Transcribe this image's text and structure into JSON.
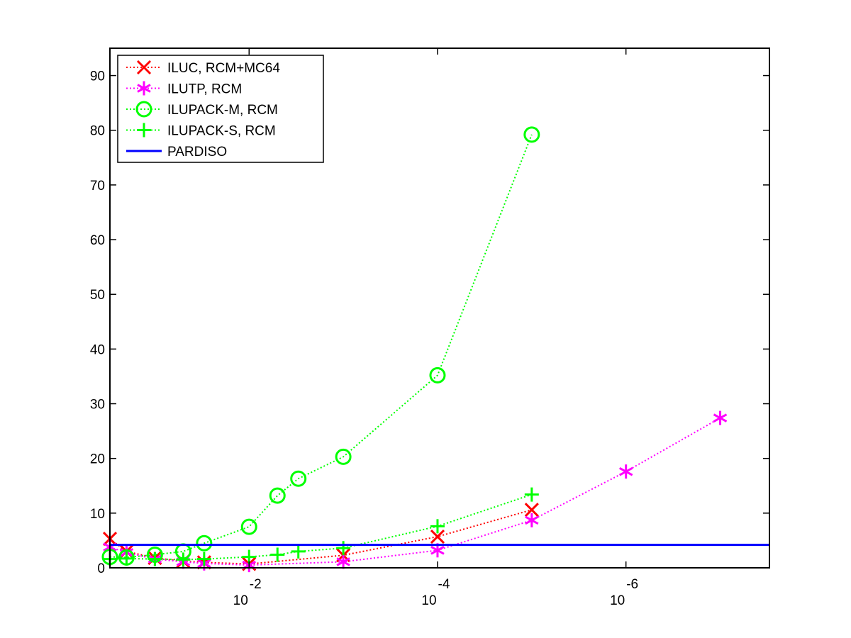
{
  "chart_data": {
    "type": "line",
    "x_scale": "log",
    "xlim": [
      0.3,
      3e-08
    ],
    "ylim": [
      0,
      95
    ],
    "x_ticks": [
      {
        "value": 0.01,
        "base": "10",
        "exponent": "-2"
      },
      {
        "value": 0.0001,
        "base": "10",
        "exponent": "-4"
      },
      {
        "value": 1e-06,
        "base": "10",
        "exponent": "-6"
      }
    ],
    "y_ticks": [
      0,
      10,
      20,
      30,
      40,
      50,
      60,
      70,
      80,
      90
    ],
    "grid": false,
    "legend_position": "top-left",
    "series": [
      {
        "name": "ILUC, RCM+MC64",
        "color": "#ff0000",
        "marker": "x",
        "line": "dotted",
        "points": [
          [
            0.3,
            5.3
          ],
          [
            0.2,
            3.0
          ],
          [
            0.1,
            1.8
          ],
          [
            0.05,
            1.2
          ],
          [
            0.03,
            1.0
          ],
          [
            0.01,
            0.7
          ],
          [
            0.001,
            2.3
          ],
          [
            0.0001,
            5.7
          ],
          [
            1e-05,
            10.6
          ]
        ]
      },
      {
        "name": "ILUTP, RCM",
        "color": "#ff00ff",
        "marker": "asterisk",
        "line": "dotted",
        "points": [
          [
            0.3,
            3.8
          ],
          [
            0.2,
            2.8
          ],
          [
            0.1,
            1.6
          ],
          [
            0.05,
            1.1
          ],
          [
            0.03,
            0.8
          ],
          [
            0.01,
            0.5
          ],
          [
            0.001,
            1.1
          ],
          [
            0.0001,
            3.2
          ],
          [
            1e-05,
            8.7
          ],
          [
            1e-06,
            17.6
          ],
          [
            1e-07,
            27.4
          ]
        ]
      },
      {
        "name": "ILUPACK-M, RCM",
        "color": "#00ff00",
        "marker": "circle",
        "line": "dotted",
        "points": [
          [
            0.3,
            2.0
          ],
          [
            0.2,
            1.9
          ],
          [
            0.1,
            2.4
          ],
          [
            0.05,
            3.0
          ],
          [
            0.03,
            4.5
          ],
          [
            0.01,
            7.5
          ],
          [
            0.005,
            13.2
          ],
          [
            0.003,
            16.3
          ],
          [
            0.001,
            20.3
          ],
          [
            0.0001,
            35.2
          ],
          [
            1e-05,
            79.2
          ]
        ]
      },
      {
        "name": "ILUPACK-S, RCM",
        "color": "#00ff00",
        "marker": "plus",
        "line": "dotted",
        "points": [
          [
            0.3,
            1.6
          ],
          [
            0.2,
            1.7
          ],
          [
            0.1,
            1.6
          ],
          [
            0.05,
            1.5
          ],
          [
            0.03,
            1.6
          ],
          [
            0.01,
            2.0
          ],
          [
            0.005,
            2.4
          ],
          [
            0.003,
            3.0
          ],
          [
            0.001,
            3.6
          ],
          [
            0.0001,
            7.6
          ],
          [
            1e-05,
            13.4
          ]
        ]
      },
      {
        "name": "PARDISO",
        "color": "#0000ff",
        "marker": "none",
        "line": "solid",
        "points": [
          [
            0.3,
            4.2
          ],
          [
            3e-08,
            4.2
          ]
        ]
      }
    ]
  }
}
